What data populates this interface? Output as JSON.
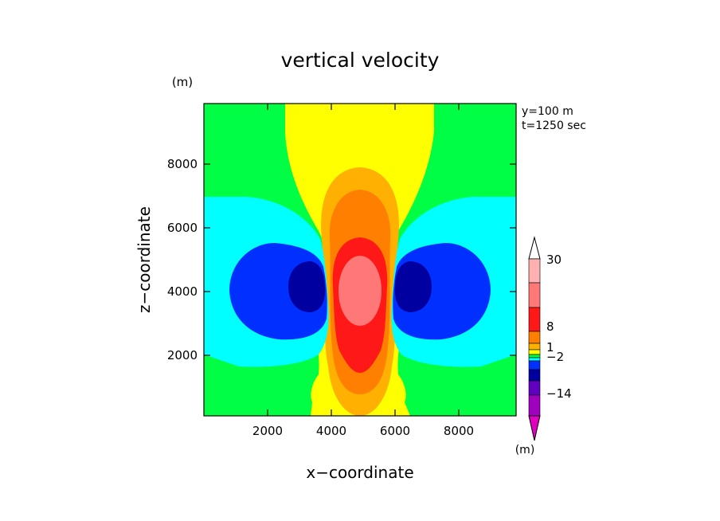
{
  "chart_data": {
    "type": "heatmap",
    "subtype": "filled-contour",
    "title": "vertical velocity",
    "xlabel": "x−coordinate",
    "ylabel": "z−coordinate",
    "yunit": "(m)",
    "colorbar_unit": "(m)",
    "annotation": [
      "y=100 m",
      "t=1250 sec"
    ],
    "xlim": [
      0,
      9800
    ],
    "ylim": [
      100,
      9900
    ],
    "xticks": [
      2000,
      4000,
      6000,
      8000
    ],
    "yticks": [
      2000,
      4000,
      6000,
      8000
    ],
    "xtick_labels": [
      "2000",
      "4000",
      "6000",
      "8000"
    ],
    "ytick_labels": [
      "2000",
      "4000",
      "6000",
      "8000"
    ],
    "colorbar": {
      "labels": [
        "30",
        "8",
        "1",
        "−2",
        "−14"
      ],
      "colors": [
        "#ffffff",
        "#ffb0b0",
        "#ff7878",
        "#ff1818",
        "#ff8000",
        "#ffb000",
        "#ffff00",
        "#00ff44",
        "#00ffff",
        "#0030ff",
        "#0000a0",
        "#6000c0",
        "#a000c0",
        "#e000c0"
      ]
    },
    "regions": [
      {
        "level": "1 to 2",
        "color": "#ffff00",
        "description": "central updraft column"
      },
      {
        "level": "2 to 4",
        "color": "#ffb000",
        "center": [
          5000,
          5200
        ]
      },
      {
        "level": "4 to 8",
        "color": "#ff8000",
        "center": [
          5000,
          4900
        ]
      },
      {
        "level": "8 to 16",
        "color": "#ff1818",
        "center": [
          5000,
          4400
        ]
      },
      {
        "level": "16 to 30",
        "color": "#ff7878",
        "center": [
          5000,
          4100
        ]
      },
      {
        "level": "-1 to -2",
        "color": "#00ffff",
        "description": "side downdraft envelopes"
      },
      {
        "level": "-2 to -6",
        "color": "#0030ff",
        "centers": [
          [
            2700,
            4000
          ],
          [
            7300,
            4000
          ]
        ]
      },
      {
        "level": "-6 to -10",
        "color": "#0000a0",
        "centers": [
          [
            3300,
            4100
          ],
          [
            6700,
            4100
          ]
        ]
      }
    ]
  }
}
